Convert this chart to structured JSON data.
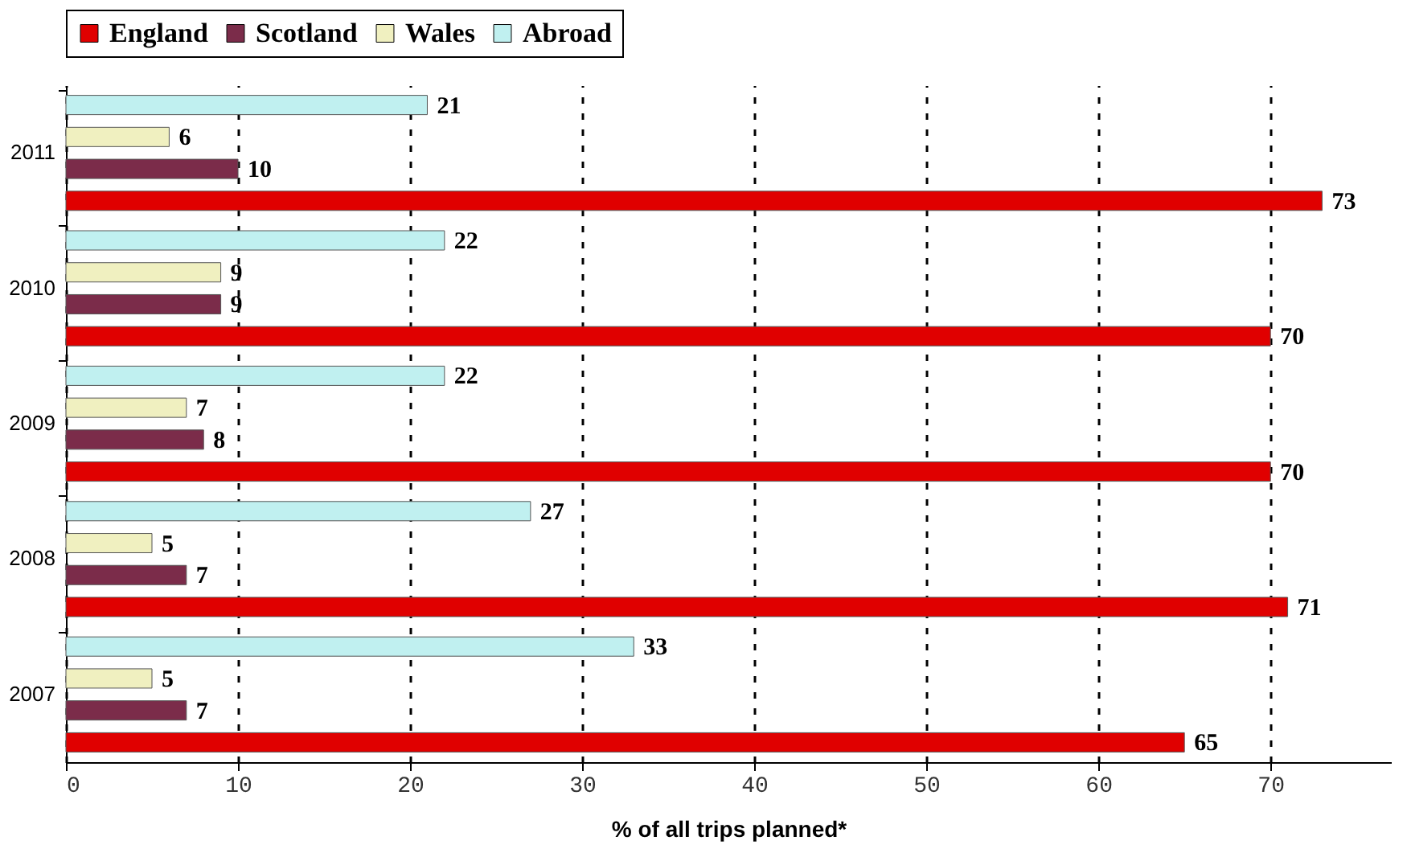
{
  "chart_data": {
    "type": "bar",
    "orientation": "horizontal",
    "xlabel": "% of all trips planned*",
    "categories": [
      "2011",
      "2010",
      "2009",
      "2008",
      "2007"
    ],
    "series": [
      {
        "name": "England",
        "color": "#e00000",
        "values": [
          73,
          70,
          70,
          71,
          65
        ]
      },
      {
        "name": "Scotland",
        "color": "#7b2c4a",
        "values": [
          10,
          9,
          8,
          7,
          7
        ]
      },
      {
        "name": "Wales",
        "color": "#f0f0c0",
        "values": [
          6,
          9,
          7,
          5,
          5
        ]
      },
      {
        "name": "Abroad",
        "color": "#c0f0f0",
        "values": [
          21,
          22,
          22,
          27,
          33
        ]
      }
    ],
    "xlim": [
      0,
      77
    ],
    "xticks": [
      0,
      10,
      20,
      30,
      40,
      50,
      60,
      70
    ],
    "grid": "x",
    "legend": "top",
    "data_labels": true
  }
}
